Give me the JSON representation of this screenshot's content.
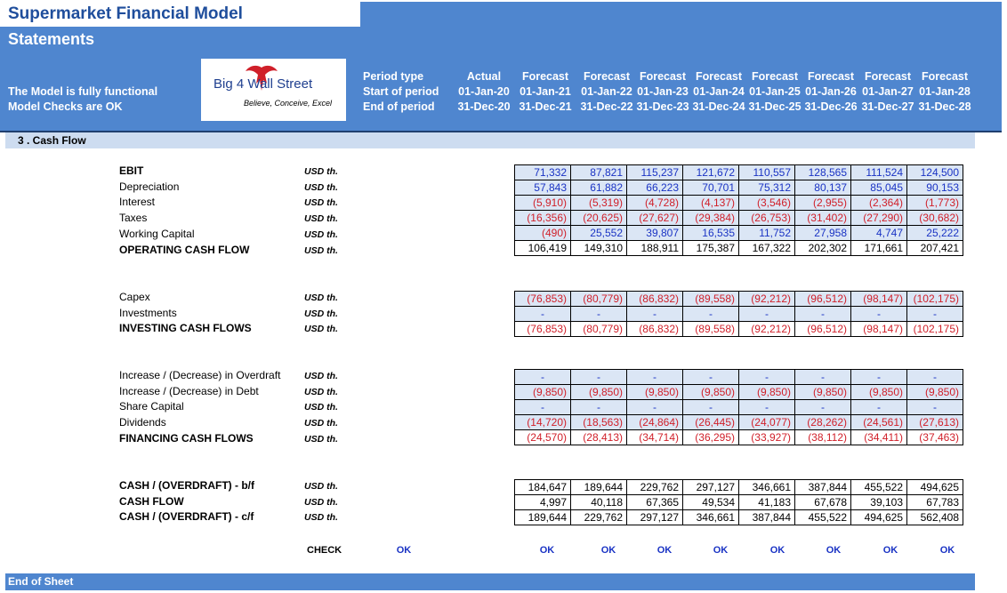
{
  "title": "Supermarket Financial Model",
  "subtitle": "Statements",
  "status": [
    "The Model is fully functional",
    "Model Checks are OK"
  ],
  "logo": {
    "text": "Big 4 Wall Street",
    "tagline": "Believe, Conceive, Excel"
  },
  "header_labels": [
    "Period type",
    "Start of period",
    "End of period"
  ],
  "columns": [
    {
      "type": "Actual",
      "start": "01-Jan-20",
      "end": "31-Dec-20"
    },
    {
      "type": "Forecast",
      "start": "01-Jan-21",
      "end": "31-Dec-21"
    },
    {
      "type": "Forecast",
      "start": "01-Jan-22",
      "end": "31-Dec-22"
    },
    {
      "type": "Forecast",
      "start": "01-Jan-23",
      "end": "31-Dec-23"
    },
    {
      "type": "Forecast",
      "start": "01-Jan-24",
      "end": "31-Dec-24"
    },
    {
      "type": "Forecast",
      "start": "01-Jan-25",
      "end": "31-Dec-25"
    },
    {
      "type": "Forecast",
      "start": "01-Jan-26",
      "end": "31-Dec-26"
    },
    {
      "type": "Forecast",
      "start": "01-Jan-27",
      "end": "31-Dec-27"
    },
    {
      "type": "Forecast",
      "start": "01-Jan-28",
      "end": "31-Dec-28"
    }
  ],
  "section": "3 .  Cash Flow",
  "unit": "USD th.",
  "groups": [
    {
      "rows": [
        {
          "label": "EBIT",
          "bold": true,
          "values": [
            "71,332",
            "87,821",
            "115,237",
            "121,672",
            "110,557",
            "128,565",
            "111,524",
            "124,500"
          ]
        },
        {
          "label": "Depreciation",
          "values": [
            "57,843",
            "61,882",
            "66,223",
            "70,701",
            "75,312",
            "80,137",
            "85,045",
            "90,153"
          ]
        },
        {
          "label": "Interest",
          "values": [
            "(5,910)",
            "(5,319)",
            "(4,728)",
            "(4,137)",
            "(3,546)",
            "(2,955)",
            "(2,364)",
            "(1,773)"
          ]
        },
        {
          "label": "Taxes",
          "values": [
            "(16,356)",
            "(20,625)",
            "(27,627)",
            "(29,384)",
            "(26,753)",
            "(31,402)",
            "(27,290)",
            "(30,682)"
          ]
        },
        {
          "label": "Working Capital",
          "values": [
            "(490)",
            "25,552",
            "39,807",
            "16,535",
            "11,752",
            "27,958",
            "4,747",
            "25,222"
          ]
        },
        {
          "label": "OPERATING CASH FLOW",
          "bold": true,
          "total": true,
          "values": [
            "106,419",
            "149,310",
            "188,911",
            "175,387",
            "167,322",
            "202,302",
            "171,661",
            "207,421"
          ]
        }
      ]
    },
    {
      "rows": [
        {
          "label": "Capex",
          "values": [
            "(76,853)",
            "(80,779)",
            "(86,832)",
            "(89,558)",
            "(92,212)",
            "(96,512)",
            "(98,147)",
            "(102,175)"
          ]
        },
        {
          "label": "Investments",
          "values": [
            "-",
            "-",
            "-",
            "-",
            "-",
            "-",
            "-",
            "-"
          ]
        },
        {
          "label": "INVESTING CASH FLOWS",
          "bold": true,
          "total": true,
          "values": [
            "(76,853)",
            "(80,779)",
            "(86,832)",
            "(89,558)",
            "(92,212)",
            "(96,512)",
            "(98,147)",
            "(102,175)"
          ]
        }
      ]
    },
    {
      "rows": [
        {
          "label": "Increase / (Decrease) in Overdraft",
          "values": [
            "-",
            "-",
            "-",
            "-",
            "-",
            "-",
            "-",
            "-"
          ]
        },
        {
          "label": "Increase / (Decrease) in Debt",
          "values": [
            "(9,850)",
            "(9,850)",
            "(9,850)",
            "(9,850)",
            "(9,850)",
            "(9,850)",
            "(9,850)",
            "(9,850)"
          ]
        },
        {
          "label": "Share Capital",
          "values": [
            "-",
            "-",
            "-",
            "-",
            "-",
            "-",
            "-",
            "-"
          ]
        },
        {
          "label": "Dividends",
          "values": [
            "(14,720)",
            "(18,563)",
            "(24,864)",
            "(26,445)",
            "(24,077)",
            "(28,262)",
            "(24,561)",
            "(27,613)"
          ]
        },
        {
          "label": "FINANCING CASH FLOWS",
          "bold": true,
          "total": true,
          "values": [
            "(24,570)",
            "(28,413)",
            "(34,714)",
            "(36,295)",
            "(33,927)",
            "(38,112)",
            "(34,411)",
            "(37,463)"
          ]
        }
      ]
    },
    {
      "rows": [
        {
          "label": "CASH / (OVERDRAFT) - b/f",
          "bold": true,
          "total": true,
          "values": [
            "184,647",
            "189,644",
            "229,762",
            "297,127",
            "346,661",
            "387,844",
            "455,522",
            "494,625"
          ]
        },
        {
          "label": "CASH FLOW",
          "bold": true,
          "total": true,
          "values": [
            "4,997",
            "40,118",
            "67,365",
            "49,534",
            "41,183",
            "67,678",
            "39,103",
            "67,783"
          ]
        },
        {
          "label": "CASH / (OVERDRAFT) - c/f",
          "bold": true,
          "total": true,
          "values": [
            "189,644",
            "229,762",
            "297,127",
            "346,661",
            "387,844",
            "455,522",
            "494,625",
            "562,408"
          ]
        }
      ]
    }
  ],
  "check": {
    "label": "CHECK",
    "values": [
      "OK",
      "OK",
      "OK",
      "OK",
      "OK",
      "OK",
      "OK",
      "OK",
      "OK"
    ]
  },
  "footer": "End of Sheet",
  "colors": {
    "header_blue": "#4f86cf",
    "title_blue": "#1f4e9c",
    "input_fill": "#dbe6f5",
    "positive": "#1a33c4",
    "negative": "#d0202a"
  }
}
